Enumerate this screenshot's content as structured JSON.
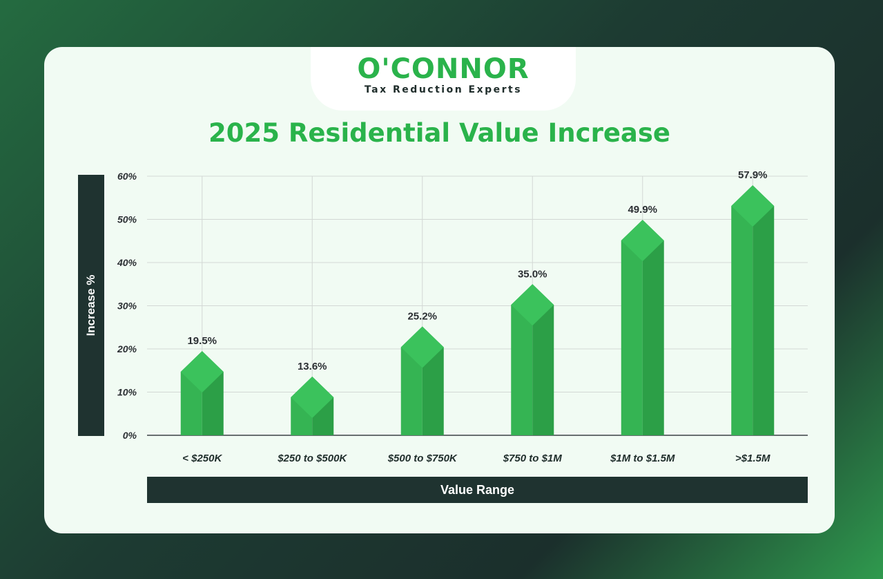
{
  "brand": {
    "name": "O'CONNOR",
    "tagline": "Tax Reduction Experts",
    "colors": {
      "accent": "#2ab34b",
      "dark": "#1f3330",
      "card": "#f1fbf3"
    }
  },
  "chart_data": {
    "type": "bar",
    "title": "2025 Residential Value Increase",
    "xlabel": "Value Range",
    "ylabel": "Increase %",
    "categories": [
      "< $250K",
      "$250 to $500K",
      "$500 to $750K",
      "$750 to $1M",
      "$1M to $1.5M",
      ">$1.5M"
    ],
    "values": [
      19.5,
      13.6,
      25.2,
      35.0,
      49.9,
      57.9
    ],
    "data_labels": [
      "19.5%",
      "13.6%",
      "25.2%",
      "35.0%",
      "49.9%",
      "57.9%"
    ],
    "ylim": [
      0,
      60
    ],
    "yticks": [
      "0%",
      "10%",
      "20%",
      "30%",
      "40%",
      "50%",
      "60%"
    ],
    "grid": true,
    "legend": "none"
  }
}
